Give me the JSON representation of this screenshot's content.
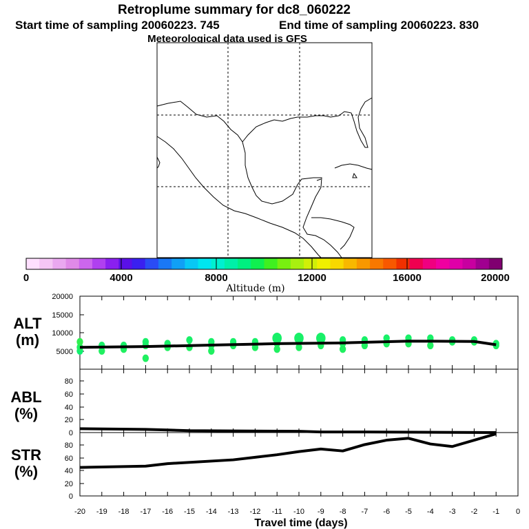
{
  "titles": {
    "main": "Retroplume summary for dc8_060222",
    "start": "Start time of sampling 20060223.   745",
    "end": "End time of sampling 20060223.   830",
    "met": "Meteorological data used is GFS"
  },
  "colorbar": {
    "label": "Altitude (m)",
    "ticks": [
      "0",
      "4000",
      "8000",
      "12000",
      "16000",
      "20000"
    ],
    "colors": [
      "#ffe0ff",
      "#f5c6f5",
      "#eaa8f0",
      "#e08ae8",
      "#cc66ee",
      "#b040f0",
      "#8a20f0",
      "#5a10e8",
      "#3a20f0",
      "#2a4cf5",
      "#1a78f5",
      "#10a0f5",
      "#08c8f5",
      "#00e6f0",
      "#00f0d0",
      "#00f0a8",
      "#00f080",
      "#10f050",
      "#40f020",
      "#78f010",
      "#a8f010",
      "#d0f008",
      "#f0f000",
      "#f8d800",
      "#f8b800",
      "#f89800",
      "#f87800",
      "#f85800",
      "#f03000",
      "#f00050",
      "#f00080",
      "#f000a0",
      "#e000a8",
      "#c800a0",
      "#a00090",
      "#800070"
    ]
  },
  "panels": {
    "alt": {
      "label1": "ALT",
      "label2": "(m)",
      "yticks": [
        "20000",
        "15000",
        "10000",
        "5000"
      ]
    },
    "abl": {
      "label1": "ABL",
      "label2": "(%)",
      "yticks": [
        "80",
        "60",
        "40",
        "20",
        "0"
      ]
    },
    "str": {
      "label1": "STR",
      "label2": "(%)",
      "yticks": [
        "80",
        "60",
        "40",
        "20",
        "0"
      ]
    }
  },
  "xaxis": {
    "label": "Travel time (days)",
    "ticks": [
      "-20",
      "-19",
      "-18",
      "-17",
      "-16",
      "-15",
      "-14",
      "-13",
      "-12",
      "-11",
      "-10",
      "-9",
      "-8",
      "-7",
      "-6",
      "-5",
      "-4",
      "-3",
      "-2",
      "-1",
      "0"
    ]
  },
  "chart_data": {
    "type": "line",
    "xlabel": "Travel time (days)",
    "xlim": [
      -20,
      0
    ],
    "series": [
      {
        "name": "ALT mean altitude (m)",
        "ylim": [
          0,
          20000
        ],
        "x": [
          -20,
          -17,
          -14,
          -11,
          -8,
          -5,
          -2,
          -1
        ],
        "y": [
          6000,
          6200,
          6600,
          7000,
          7200,
          7700,
          7600,
          6700
        ]
      },
      {
        "name": "ABL (%)",
        "ylim": [
          0,
          100
        ],
        "x": [
          -20,
          -17,
          -16,
          -15,
          -10,
          -9,
          -8,
          -7,
          -1
        ],
        "y": [
          6,
          5,
          4,
          3,
          2,
          1,
          1,
          1,
          0
        ]
      },
      {
        "name": "STR (%)",
        "ylim": [
          0,
          100
        ],
        "x": [
          -20,
          -17,
          -16,
          -13,
          -12,
          -11,
          -10,
          -9,
          -8,
          -7,
          -6,
          -5,
          -4,
          -3,
          -2,
          -1
        ],
        "y": [
          45,
          47,
          51,
          57,
          61,
          65,
          70,
          74,
          71,
          81,
          88,
          91,
          82,
          78,
          88,
          98
        ]
      }
    ],
    "alt_spread": [
      {
        "x": -20,
        "y": [
          5000,
          6000,
          7500
        ],
        "c": [
          "#10f070",
          "#20f060",
          "#30f050"
        ]
      },
      {
        "x": -19,
        "y": [
          5000,
          6500
        ],
        "c": [
          "#20f060",
          "#18f068"
        ]
      },
      {
        "x": -18,
        "y": [
          5500,
          6500
        ],
        "c": [
          "#20f060",
          "#18f068"
        ]
      },
      {
        "x": -17,
        "y": [
          3000,
          6500,
          7500
        ],
        "c": [
          "#20f060",
          "#20f060",
          "#18f068"
        ]
      },
      {
        "x": -16,
        "y": [
          6000,
          7000
        ],
        "c": [
          "#20f060",
          "#18f068"
        ]
      },
      {
        "x": -15,
        "y": [
          6000,
          8000
        ],
        "c": [
          "#20f060",
          "#18f068"
        ]
      },
      {
        "x": -14,
        "y": [
          5000,
          6500,
          7500
        ],
        "c": [
          "#20f060",
          "#20f060",
          "#18f068"
        ]
      },
      {
        "x": -13,
        "y": [
          6500,
          7500
        ],
        "c": [
          "#20f060",
          "#18f068"
        ]
      },
      {
        "x": -12,
        "y": [
          6000,
          7500
        ],
        "c": [
          "#20f060",
          "#18f068"
        ]
      },
      {
        "x": -11,
        "y": [
          5500,
          7000,
          8500
        ],
        "c": [
          "#20f060",
          "#20f060",
          "#18f068"
        ]
      },
      {
        "x": -10,
        "y": [
          6000,
          7500,
          8500
        ],
        "c": [
          "#20f060",
          "#20f060",
          "#18f068"
        ]
      },
      {
        "x": -9,
        "y": [
          6500,
          8000,
          8500
        ],
        "c": [
          "#20f060",
          "#20f060",
          "#18f068"
        ]
      },
      {
        "x": -8,
        "y": [
          5500,
          7000,
          8000
        ],
        "c": [
          "#20f060",
          "#20f060",
          "#18f068"
        ]
      },
      {
        "x": -7,
        "y": [
          6500,
          8000
        ],
        "c": [
          "#20f060",
          "#18f068"
        ]
      },
      {
        "x": -6,
        "y": [
          7000,
          8500
        ],
        "c": [
          "#20f060",
          "#18f068"
        ]
      },
      {
        "x": -5,
        "y": [
          7000,
          8500
        ],
        "c": [
          "#20f060",
          "#18f068"
        ]
      },
      {
        "x": -4,
        "y": [
          6500,
          8000,
          8500
        ],
        "c": [
          "#20f060",
          "#20f060",
          "#18f068"
        ]
      },
      {
        "x": -3,
        "y": [
          7500,
          8000
        ],
        "c": [
          "#20f060",
          "#18f068"
        ]
      },
      {
        "x": -2,
        "y": [
          7500,
          8000
        ],
        "c": [
          "#20f060",
          "#18f068"
        ]
      },
      {
        "x": -1,
        "y": [
          6500,
          7000
        ],
        "c": [
          "#20f060",
          "#18f068"
        ]
      }
    ]
  }
}
